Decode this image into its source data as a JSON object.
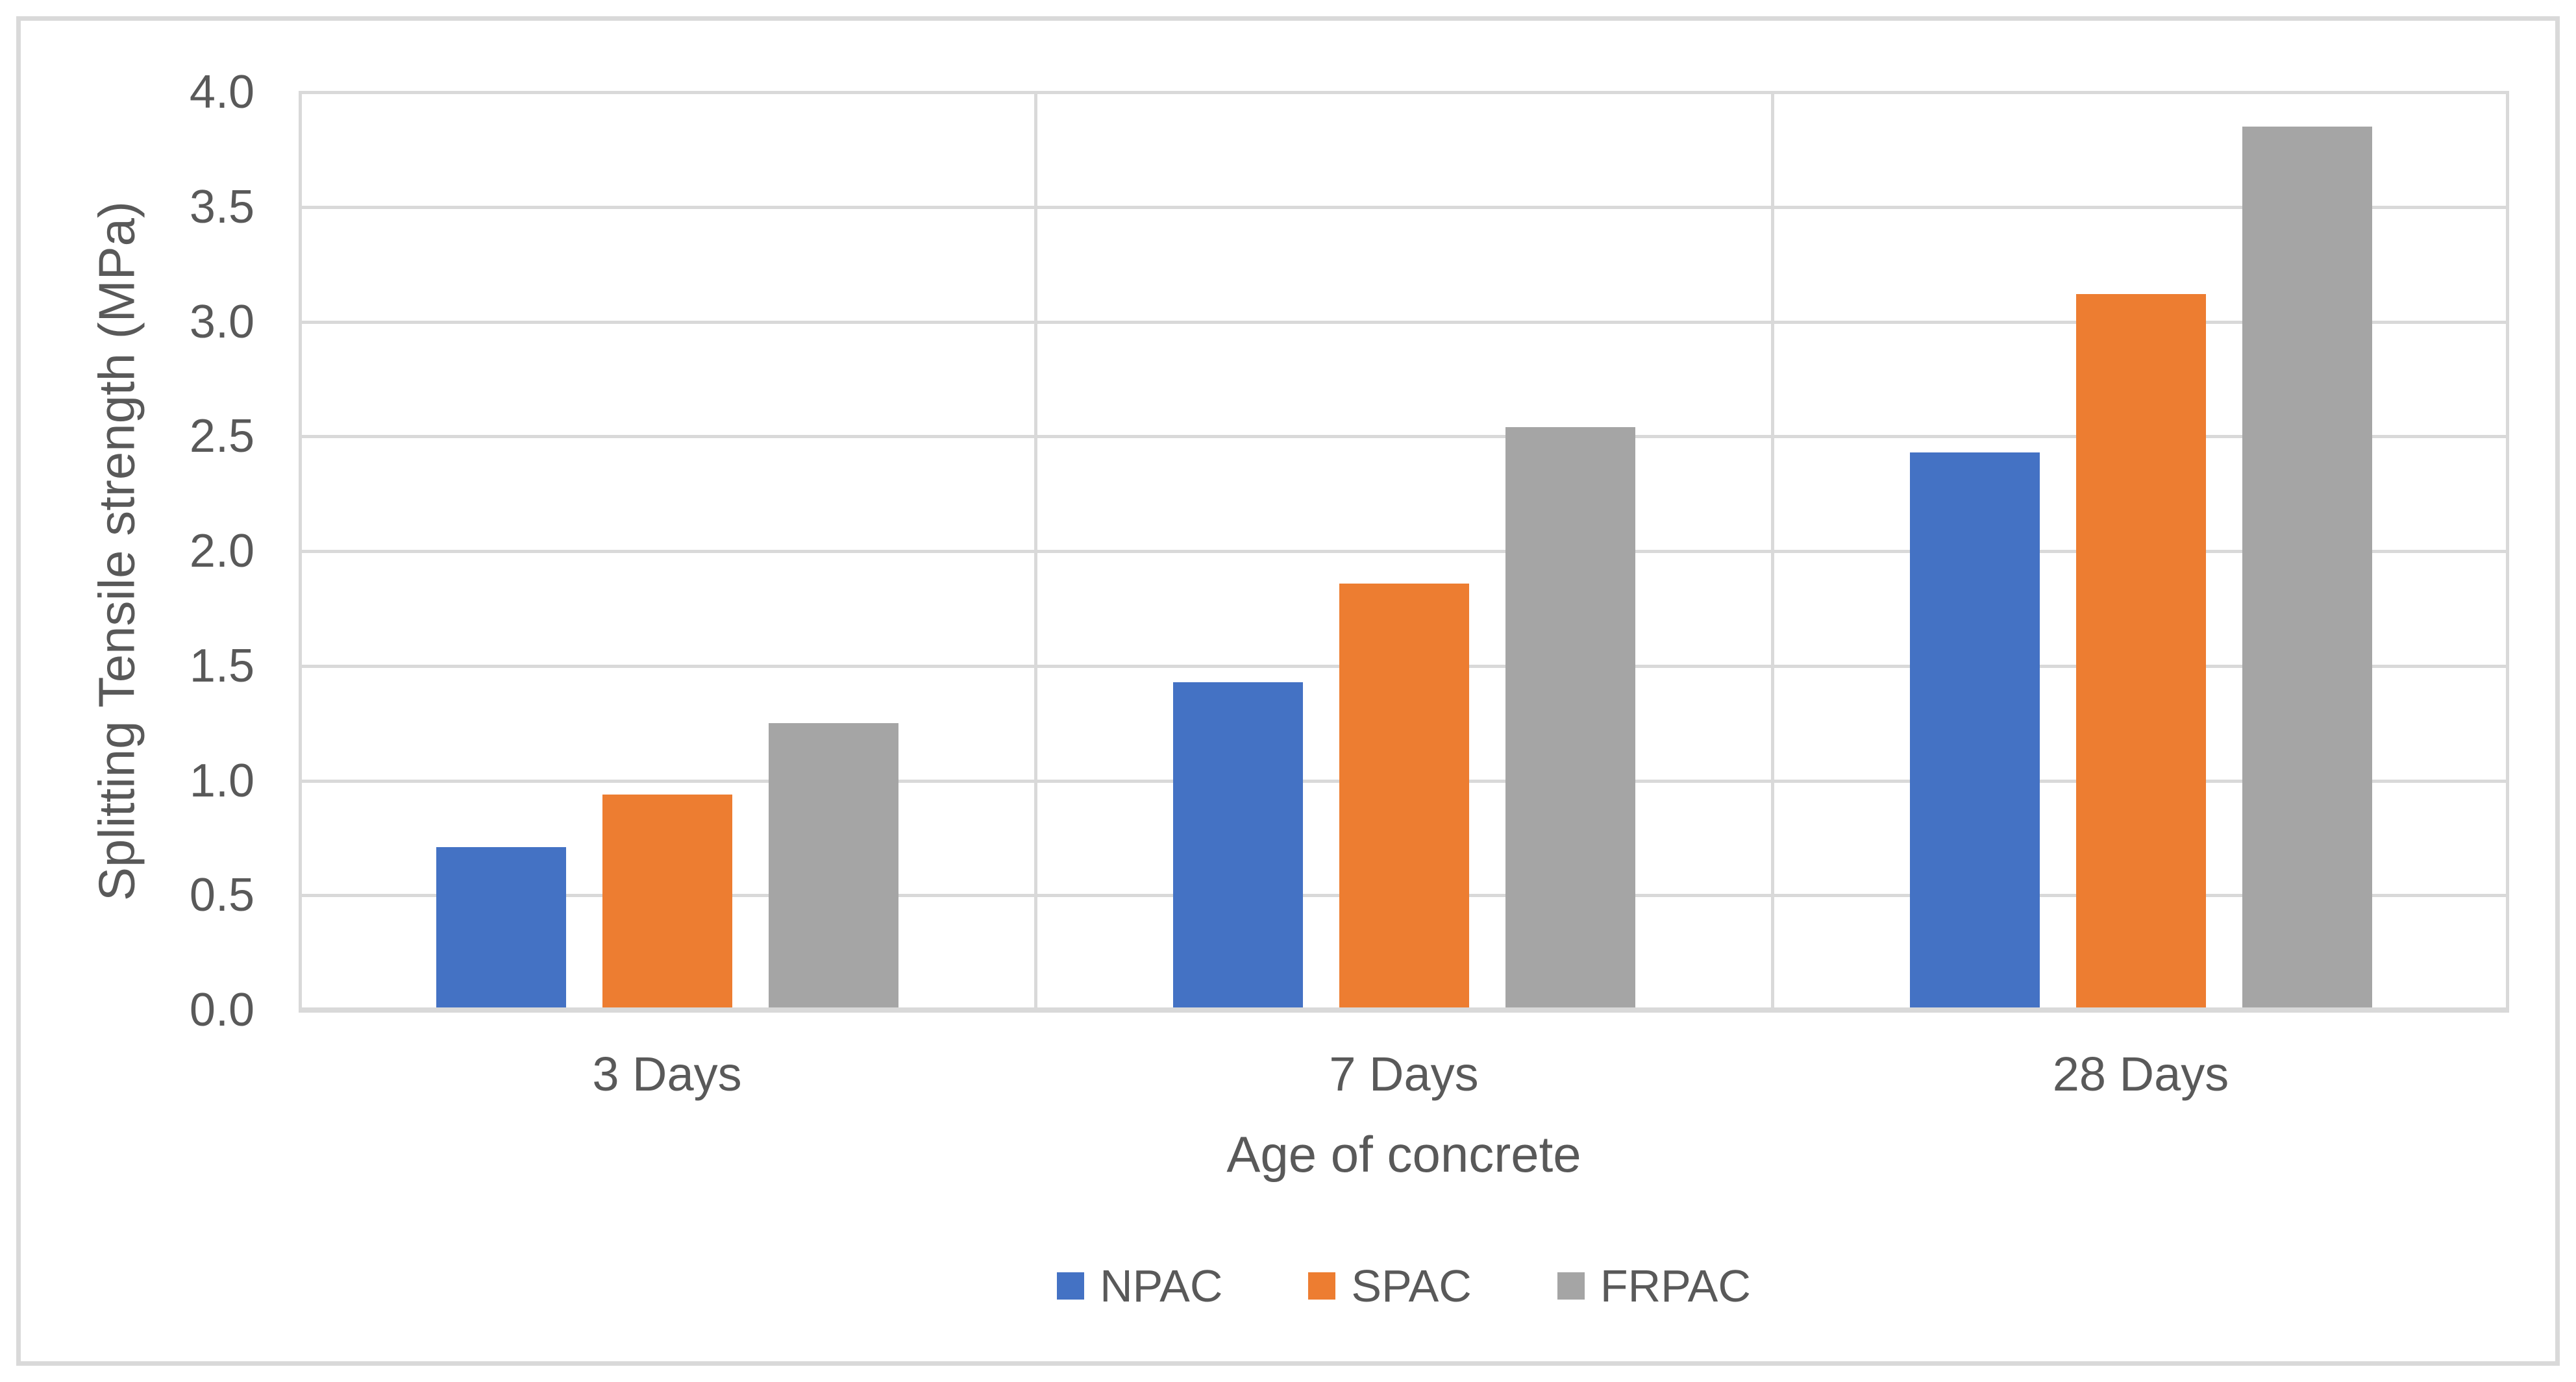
{
  "chart_data": {
    "type": "bar",
    "title": "",
    "categories": [
      "3 Days",
      "7 Days",
      "28 Days"
    ],
    "series": [
      {
        "name": "NPAC",
        "color": "#4472C4",
        "values": [
          0.71,
          1.43,
          2.43
        ]
      },
      {
        "name": "SPAC",
        "color": "#ED7D31",
        "values": [
          0.94,
          1.86,
          3.12
        ]
      },
      {
        "name": "FRPAC",
        "color": "#A5A5A5",
        "values": [
          1.25,
          2.54,
          3.85
        ]
      }
    ],
    "xlabel": "Age of concrete",
    "ylabel": "Splitting Tensile strength (MPa)",
    "ylim": [
      0,
      4
    ],
    "ytick_step": 0.5,
    "ytick_labels": [
      "0.0",
      "0.5",
      "1.0",
      "1.5",
      "2.0",
      "2.5",
      "3.0",
      "3.5",
      "4.0"
    ],
    "grid": true,
    "legend_position": "bottom"
  },
  "colors": {
    "gridline": "#d9d9d9",
    "axis_text": "#595959",
    "frame_border": "#d9d9d9",
    "background": "#ffffff"
  }
}
